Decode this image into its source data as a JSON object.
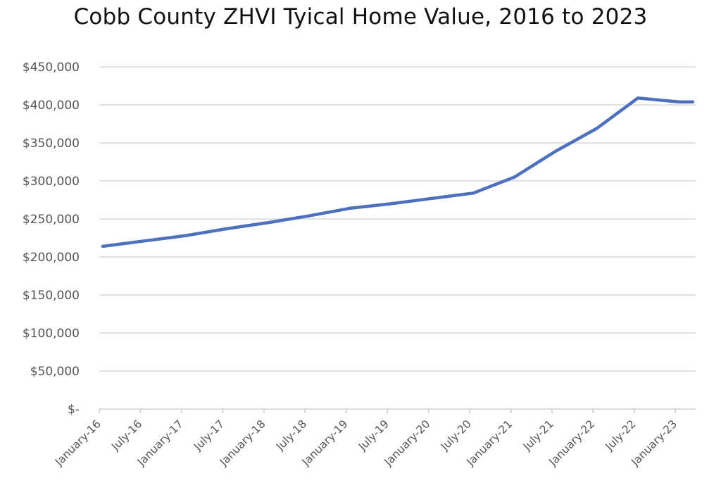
{
  "chart_data": {
    "type": "line",
    "title": "Cobb County ZHVI Tyical Home Value, 2016 to 2023",
    "xlabel": "",
    "ylabel": "",
    "x_tick_labels": [
      "January-16",
      "July-16",
      "January-17",
      "July-17",
      "January-18",
      "July-18",
      "January-19",
      "July-19",
      "January-20",
      "July-20",
      "January-21",
      "July-21",
      "January-22",
      "July-22",
      "January-23"
    ],
    "y_tick_labels": [
      "$-",
      "$50,000",
      "$100,000",
      "$150,000",
      "$200,000",
      "$250,000",
      "$300,000",
      "$350,000",
      "$400,000",
      "$450,000"
    ],
    "ylim": [
      0,
      450000
    ],
    "grid": true,
    "legend": "none",
    "series": [
      {
        "color": "#4e71be",
        "points": [
          {
            "x": "January-16",
            "y": 214000
          },
          {
            "x": "July-16",
            "y": 221000
          },
          {
            "x": "January-17",
            "y": 228000
          },
          {
            "x": "July-17",
            "y": 237000
          },
          {
            "x": "January-18",
            "y": 245000
          },
          {
            "x": "July-18",
            "y": 254000
          },
          {
            "x": "January-19",
            "y": 264000
          },
          {
            "x": "July-19",
            "y": 270000
          },
          {
            "x": "January-20",
            "y": 277000
          },
          {
            "x": "July-20",
            "y": 284000
          },
          {
            "x": "January-21",
            "y": 305000
          },
          {
            "x": "July-21",
            "y": 339000
          },
          {
            "x": "January-22",
            "y": 369000
          },
          {
            "x": "July-22",
            "y": 409000
          },
          {
            "x": "January-23",
            "y": 404000
          },
          {
            "x": "March-23",
            "y": 404000
          }
        ]
      }
    ]
  }
}
